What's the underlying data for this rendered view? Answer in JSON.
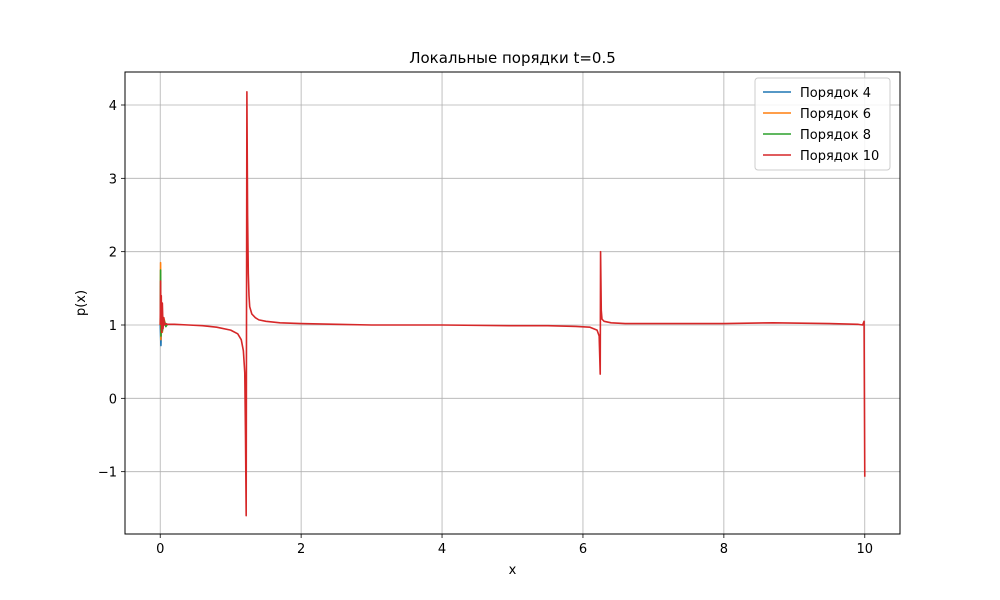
{
  "chart_data": {
    "type": "line",
    "title": "Локальные порядки t=0.5",
    "xlabel": "x",
    "ylabel": "p(x)",
    "xlim": [
      -0.5,
      10.5
    ],
    "ylim": [
      -1.85,
      4.45
    ],
    "xticks": [
      0,
      2,
      4,
      6,
      8,
      10
    ],
    "yticks": [
      -1,
      0,
      1,
      2,
      3,
      4
    ],
    "xtick_labels": [
      "0",
      "2",
      "4",
      "6",
      "8",
      "10"
    ],
    "ytick_labels": [
      "−1",
      "0",
      "1",
      "2",
      "3",
      "4"
    ],
    "grid": true,
    "legend_position": "top-right",
    "series": [
      {
        "name": "Порядок 4",
        "color": "#1f77b4",
        "x": [
          0,
          0.01,
          0.02,
          0.03,
          0.05,
          0.08,
          0.1
        ],
        "y": [
          1.0,
          0.72,
          1.1,
          0.95,
          1.05,
          0.98,
          1.01
        ]
      },
      {
        "name": "Порядок 6",
        "color": "#ff7f0e",
        "x": [
          0,
          0.005,
          0.01,
          0.02,
          0.03,
          0.05,
          0.08,
          0.1
        ],
        "y": [
          1.0,
          1.85,
          0.8,
          1.3,
          0.9,
          1.1,
          0.98,
          1.01
        ]
      },
      {
        "name": "Порядок 8",
        "color": "#2ca02c",
        "x": [
          0,
          0.005,
          0.01,
          0.02,
          0.03,
          0.05,
          0.08,
          0.1
        ],
        "y": [
          1.0,
          1.75,
          0.85,
          1.25,
          0.92,
          1.08,
          0.98,
          1.01
        ]
      },
      {
        "name": "Порядок 10",
        "color": "#d62728",
        "x": [
          0,
          0.005,
          0.01,
          0.015,
          0.02,
          0.03,
          0.04,
          0.05,
          0.06,
          0.08,
          0.1,
          0.2,
          0.4,
          0.6,
          0.8,
          1.0,
          1.1,
          1.15,
          1.18,
          1.2,
          1.21,
          1.22,
          1.23,
          1.24,
          1.25,
          1.26,
          1.27,
          1.3,
          1.35,
          1.4,
          1.5,
          1.7,
          2.0,
          2.5,
          3.0,
          4.0,
          5.0,
          5.5,
          5.9,
          6.1,
          6.2,
          6.23,
          6.245,
          6.25,
          6.26,
          6.27,
          6.3,
          6.4,
          6.6,
          7.0,
          8.0,
          8.7,
          9.5,
          9.9,
          9.97,
          9.99,
          10.0
        ],
        "y": [
          1.0,
          1.6,
          1.1,
          1.4,
          0.9,
          1.3,
          0.95,
          1.1,
          1.0,
          1.02,
          1.01,
          1.01,
          1.0,
          0.99,
          0.97,
          0.93,
          0.88,
          0.8,
          0.65,
          0.35,
          -0.5,
          -1.6,
          4.18,
          2.5,
          1.7,
          1.4,
          1.25,
          1.15,
          1.1,
          1.07,
          1.05,
          1.03,
          1.02,
          1.01,
          1.0,
          1.0,
          0.99,
          0.99,
          0.98,
          0.97,
          0.93,
          0.85,
          0.33,
          2.0,
          1.2,
          1.08,
          1.05,
          1.03,
          1.02,
          1.02,
          1.02,
          1.03,
          1.02,
          1.01,
          1.0,
          1.05,
          -1.07
        ]
      }
    ]
  }
}
